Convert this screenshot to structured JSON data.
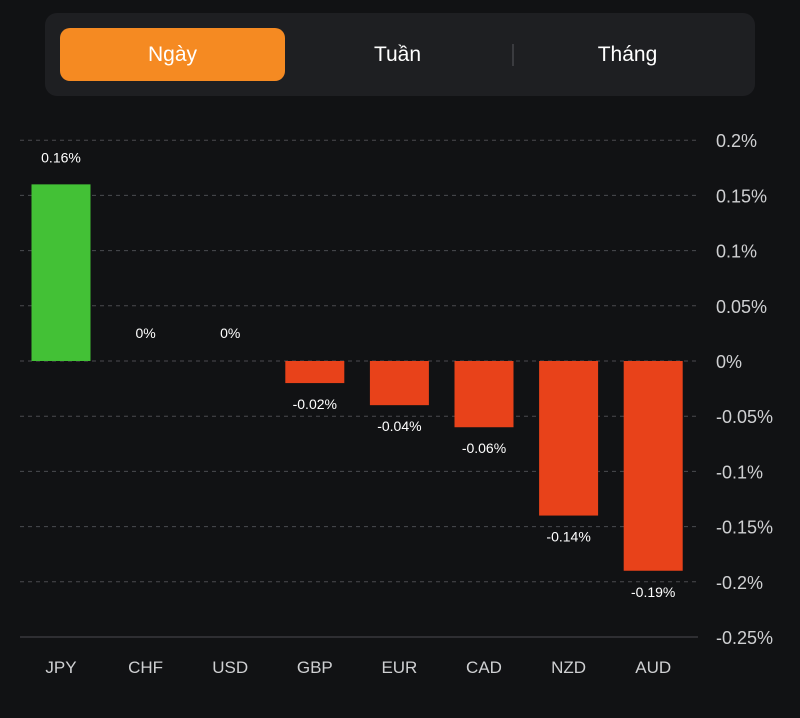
{
  "tabs": [
    {
      "label": "Ngày",
      "active": true
    },
    {
      "label": "Tuần",
      "active": false
    },
    {
      "label": "Tháng",
      "active": false
    }
  ],
  "colors": {
    "positive": "#43c136",
    "negative": "#e8421a",
    "accent": "#f58a22",
    "grid": "#4a4b4f",
    "text": "#cfd0d2"
  },
  "chart_data": {
    "type": "bar",
    "categories": [
      "JPY",
      "CHF",
      "USD",
      "GBP",
      "EUR",
      "CAD",
      "NZD",
      "AUD"
    ],
    "values": [
      0.16,
      0,
      0,
      -0.02,
      -0.04,
      -0.06,
      -0.14,
      -0.19
    ],
    "data_labels": [
      "0.16%",
      "0%",
      "0%",
      "-0.02%",
      "-0.04%",
      "-0.06%",
      "-0.14%",
      "-0.19%"
    ],
    "yticks": [
      0.2,
      0.15,
      0.1,
      0.05,
      0,
      -0.05,
      -0.1,
      -0.15,
      -0.2,
      -0.25
    ],
    "ytick_labels": [
      "0.2%",
      "0.15%",
      "0.1%",
      "0.05%",
      "0%",
      "-0.05%",
      "-0.1%",
      "-0.15%",
      "-0.2%",
      "-0.25%"
    ],
    "ylim": [
      -0.25,
      0.2
    ],
    "ylabel_position": "right",
    "grid": true
  }
}
